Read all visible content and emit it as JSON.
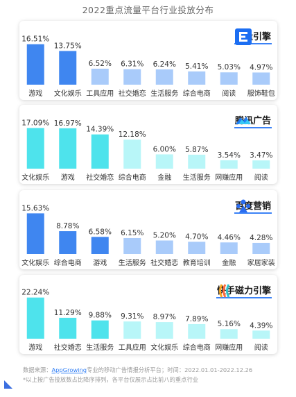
{
  "page": {
    "title": "2022重点流量平台行业投放分布"
  },
  "colors": {
    "blue_strong": "#3f86f0",
    "blue_light": "#a9cbfa",
    "cyan_strong": "#4ee3ec",
    "cyan_light": "#b8f6f8",
    "underline": "#3b82f6"
  },
  "panels": [
    {
      "platform": "巨量引擎",
      "icon": "ocean-engine-logo-icon",
      "color_scheme": "blue",
      "strong_count": 2
    },
    {
      "platform": "腾讯广告",
      "icon": "tencent-ads-logo-icon",
      "color_scheme": "cyan",
      "strong_count": 3
    },
    {
      "platform": "百度营销",
      "icon": "baidu-marketing-logo-icon",
      "color_scheme": "blue",
      "strong_count": 3
    },
    {
      "platform": "快手磁力引擎",
      "icon": "kuaishou-magnetic-engine-logo-icon",
      "color_scheme": "cyan",
      "strong_count": 3
    }
  ],
  "chart_data": [
    {
      "type": "bar",
      "categories": [
        "游戏",
        "文化娱乐",
        "工具应用",
        "社交婚恋",
        "生活服务",
        "综合电商",
        "阅读",
        "服饰鞋包"
      ],
      "values": [
        16.51,
        13.75,
        6.52,
        6.31,
        6.24,
        5.41,
        5.03,
        4.97
      ],
      "labels": [
        "16.51%",
        "13.75%",
        "6.52%",
        "6.31%",
        "6.24%",
        "5.41%",
        "5.03%",
        "4.97%"
      ],
      "ylim": [
        0,
        17
      ]
    },
    {
      "type": "bar",
      "categories": [
        "文化娱乐",
        "游戏",
        "社交婚恋",
        "综合电商",
        "金融",
        "生活服务",
        "网赚应用",
        "阅读"
      ],
      "values": [
        17.09,
        16.97,
        14.39,
        12.18,
        6.0,
        5.87,
        3.54,
        3.47
      ],
      "labels": [
        "17.09%",
        "16.97%",
        "14.39%",
        "12.18%",
        "6.00%",
        "5.87%",
        "3.54%",
        "3.47%"
      ],
      "ylim": [
        0,
        17.5
      ]
    },
    {
      "type": "bar",
      "categories": [
        "文化娱乐",
        "综合电商",
        "游戏",
        "生活服务",
        "社交婚恋",
        "教育培训",
        "金融",
        "家居家装"
      ],
      "values": [
        15.63,
        8.78,
        6.58,
        6.15,
        5.2,
        4.7,
        4.46,
        4.28
      ],
      "labels": [
        "15.63%",
        "8.78%",
        "6.58%",
        "6.15%",
        "5.20%",
        "4.70%",
        "4.46%",
        "4.28%"
      ],
      "ylim": [
        0,
        16
      ]
    },
    {
      "type": "bar",
      "categories": [
        "游戏",
        "社交婚恋",
        "生活服务",
        "工具应用",
        "文化娱乐",
        "综合电商",
        "网赚应用",
        "阅读"
      ],
      "values": [
        22.24,
        11.29,
        9.88,
        9.31,
        8.97,
        7.89,
        5.16,
        4.39
      ],
      "labels": [
        "22.24%",
        "11.29%",
        "9.88%",
        "9.31%",
        "8.97%",
        "7.89%",
        "5.16%",
        "4.39%"
      ],
      "ylim": [
        0,
        22.5
      ]
    }
  ],
  "footer": {
    "source_prefix": "数据来源：",
    "source_link": "AppGrowing",
    "source_suffix": "专业的移动广告情报分析平台；时间：2022.01.01-2022.12.26",
    "note": "*以上按广告投放数占比降序排列，各平台仅展示占比前八的重点行业"
  }
}
